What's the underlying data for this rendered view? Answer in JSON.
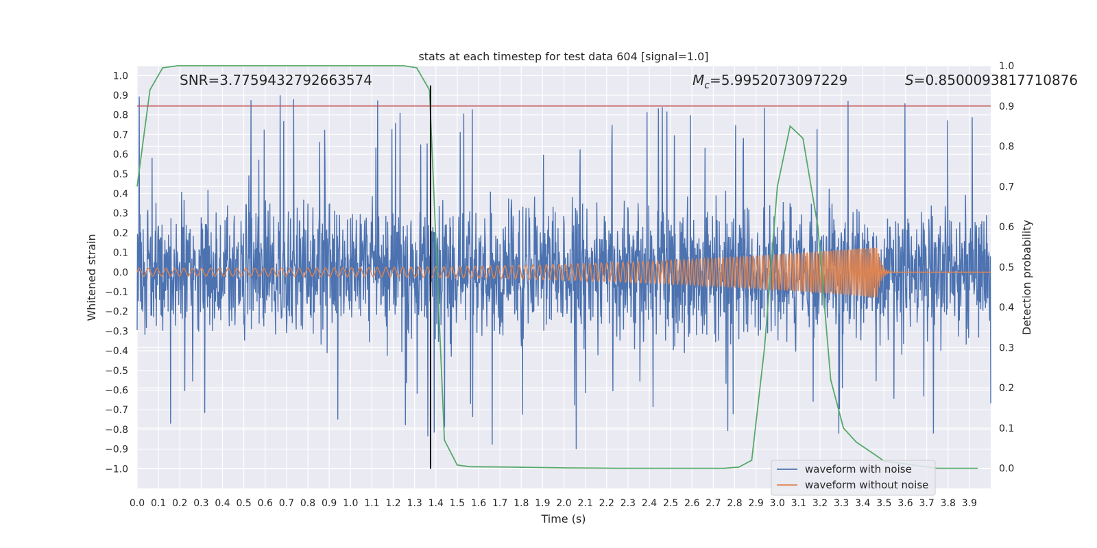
{
  "chart_data": {
    "type": "line",
    "title": "stats at each timestep for test data 604 [signal=1.0]",
    "xlabel": "Time (s)",
    "ylabel_left": "Whitened strain",
    "ylabel_right": "Detection probability",
    "xlim": [
      0.0,
      4.0
    ],
    "ylim_left": [
      -1.1,
      1.05
    ],
    "ylim_right": [
      -0.05,
      1.0
    ],
    "x_ticks": [
      0.0,
      0.1,
      0.2,
      0.3,
      0.4,
      0.5,
      0.6,
      0.7,
      0.8,
      0.9,
      1.0,
      1.1,
      1.2,
      1.3,
      1.4,
      1.5,
      1.6,
      1.7,
      1.8,
      1.9,
      2.0,
      2.1,
      2.2,
      2.3,
      2.4,
      2.5,
      2.6,
      2.7,
      2.8,
      2.9,
      3.0,
      3.1,
      3.2,
      3.3,
      3.4,
      3.5,
      3.6,
      3.7,
      3.8,
      3.9
    ],
    "y_ticks_left": [
      1.0,
      0.9,
      0.8,
      0.7,
      0.6,
      0.5,
      0.4,
      0.3,
      0.2,
      0.1,
      0.0,
      -0.1,
      -0.2,
      -0.3,
      -0.4,
      -0.5,
      -0.6,
      -0.7,
      -0.8,
      -0.9,
      -1.0
    ],
    "y_ticks_right": [
      1.0,
      0.9,
      0.8,
      0.7,
      0.6,
      0.5,
      0.4,
      0.3,
      0.2,
      0.1,
      0.0
    ],
    "grid": true,
    "legend_position": "lower-right",
    "annotations": {
      "snr": "SNR=3.7759432792663574",
      "mc_symbol": "M",
      "mc_sub": "c",
      "mc_value": "=5.9952073097229",
      "s_symbol": "S",
      "s_value": "=0.8500093817710876"
    },
    "threshold_line": {
      "value": 0.9,
      "axis": "right",
      "color": "#c44e52"
    },
    "marker_line": {
      "x": 1.375,
      "y_range": [
        -1.0,
        0.95
      ],
      "color": "#000000"
    },
    "series": [
      {
        "name": "waveform with noise",
        "color": "#4c72b0",
        "axis": "left",
        "style": "noise",
        "amplitude": 0.45,
        "peak_range": [
          -0.94,
          0.94
        ]
      },
      {
        "name": "waveform without noise",
        "color": "#dd8452",
        "axis": "left",
        "style": "chirp",
        "start_amplitude": 0.02,
        "end_amplitude": 0.13,
        "merger_time": 3.47
      },
      {
        "name": "detection probability",
        "color": "#55a868",
        "axis": "right",
        "x": [
          0.0,
          0.06,
          0.12,
          0.19,
          0.25,
          0.5,
          0.75,
          1.0,
          1.25,
          1.31,
          1.37,
          1.44,
          1.5,
          1.56,
          1.75,
          2.0,
          2.25,
          2.5,
          2.75,
          2.82,
          2.88,
          2.94,
          3.0,
          3.06,
          3.12,
          3.19,
          3.25,
          3.31,
          3.37,
          3.44,
          3.5,
          3.75,
          3.94
        ],
        "y": [
          0.7,
          0.94,
          0.995,
          1.0,
          1.0,
          1.0,
          1.0,
          1.0,
          1.0,
          0.995,
          0.94,
          0.07,
          0.008,
          0.004,
          0.003,
          0.001,
          0.0,
          0.0,
          0.0,
          0.003,
          0.02,
          0.3,
          0.7,
          0.85,
          0.82,
          0.6,
          0.22,
          0.1,
          0.065,
          0.04,
          0.018,
          0.0,
          0.0
        ]
      }
    ]
  }
}
